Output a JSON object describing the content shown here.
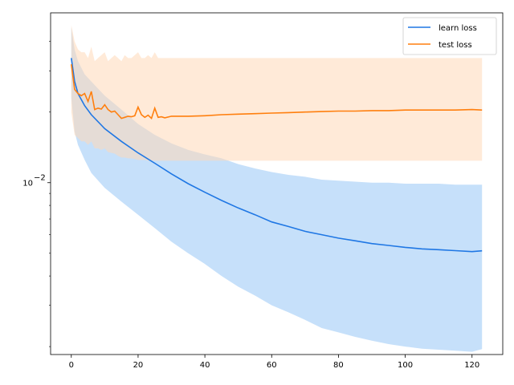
{
  "chart_data": {
    "type": "line",
    "title": "",
    "xlabel": "",
    "ylabel": "",
    "xlim": [
      -6.2,
      129.2
    ],
    "ylim": [
      0.00185,
      0.053
    ],
    "y_scale": "log",
    "grid": false,
    "legend_placement": "top-right",
    "x_ticks": [
      0,
      20,
      40,
      60,
      80,
      100,
      120
    ],
    "y_tick_label": {
      "base": "10",
      "exponent": "−2"
    },
    "y_minor_ticks": [
      0.002,
      0.003,
      0.004,
      0.005,
      0.006,
      0.007,
      0.008,
      0.009,
      0.02,
      0.03,
      0.04
    ],
    "series": [
      {
        "name": "learn loss",
        "color": "#1f77e4",
        "band_color": "#a8d0f8",
        "x": [
          0,
          1,
          2,
          4,
          6,
          10,
          15,
          20,
          25,
          30,
          35,
          40,
          45,
          50,
          55,
          60,
          65,
          70,
          75,
          80,
          85,
          90,
          95,
          100,
          105,
          110,
          115,
          120,
          123
        ],
        "y": [
          0.034,
          0.027,
          0.024,
          0.0213,
          0.0195,
          0.017,
          0.015,
          0.0134,
          0.0121,
          0.0109,
          0.0099,
          0.0091,
          0.0084,
          0.0078,
          0.0073,
          0.0068,
          0.0065,
          0.0062,
          0.006,
          0.0058,
          0.00565,
          0.0055,
          0.0054,
          0.0053,
          0.00522,
          0.00518,
          0.00513,
          0.00508,
          0.00512
        ],
        "upper": [
          0.046,
          0.037,
          0.033,
          0.029,
          0.027,
          0.0235,
          0.0205,
          0.0178,
          0.016,
          0.0147,
          0.0138,
          0.0132,
          0.0127,
          0.012,
          0.0115,
          0.0111,
          0.0108,
          0.0106,
          0.0103,
          0.0102,
          0.0101,
          0.01,
          0.01,
          0.0099,
          0.0099,
          0.0099,
          0.0098,
          0.0098,
          0.0098
        ],
        "lower": [
          0.023,
          0.0165,
          0.0145,
          0.0125,
          0.011,
          0.0095,
          0.0083,
          0.0073,
          0.0064,
          0.0056,
          0.005,
          0.0045,
          0.004,
          0.0036,
          0.0033,
          0.003,
          0.0028,
          0.0026,
          0.0024,
          0.0023,
          0.0022,
          0.00212,
          0.00205,
          0.002,
          0.00196,
          0.00194,
          0.00192,
          0.0019,
          0.00195
        ]
      },
      {
        "name": "test loss",
        "color": "#ff7f0e",
        "band_color": "#ffd9b8",
        "x": [
          0,
          1,
          2,
          3,
          4,
          5,
          6,
          7,
          8,
          9,
          10,
          11,
          12,
          13,
          14,
          15,
          16,
          17,
          18,
          19,
          20,
          21,
          22,
          23,
          24,
          25,
          26,
          27,
          28,
          30,
          35,
          40,
          45,
          50,
          55,
          60,
          65,
          70,
          75,
          80,
          85,
          90,
          95,
          100,
          105,
          110,
          115,
          120,
          123
        ],
        "y": [
          0.032,
          0.025,
          0.024,
          0.0235,
          0.024,
          0.0222,
          0.0245,
          0.0205,
          0.0208,
          0.0206,
          0.0215,
          0.0205,
          0.02,
          0.0202,
          0.0195,
          0.0188,
          0.019,
          0.0192,
          0.0191,
          0.0193,
          0.021,
          0.0195,
          0.019,
          0.0194,
          0.0188,
          0.0208,
          0.019,
          0.0191,
          0.0189,
          0.0192,
          0.0192,
          0.0193,
          0.0195,
          0.0196,
          0.0197,
          0.0198,
          0.0199,
          0.02,
          0.0201,
          0.0202,
          0.0202,
          0.0203,
          0.0203,
          0.0204,
          0.0204,
          0.0204,
          0.0204,
          0.0205,
          0.0204
        ],
        "upper": [
          0.047,
          0.04,
          0.037,
          0.036,
          0.036,
          0.034,
          0.038,
          0.033,
          0.034,
          0.035,
          0.036,
          0.033,
          0.034,
          0.035,
          0.034,
          0.033,
          0.035,
          0.034,
          0.034,
          0.035,
          0.036,
          0.034,
          0.034,
          0.035,
          0.034,
          0.036,
          0.034,
          0.034,
          0.034,
          0.034,
          0.034,
          0.034,
          0.034,
          0.034,
          0.034,
          0.034,
          0.034,
          0.034,
          0.034,
          0.034,
          0.034,
          0.034,
          0.034,
          0.034,
          0.034,
          0.034,
          0.034,
          0.034,
          0.034
        ],
        "lower": [
          0.02,
          0.016,
          0.0155,
          0.015,
          0.015,
          0.0145,
          0.015,
          0.014,
          0.014,
          0.0138,
          0.014,
          0.0135,
          0.0134,
          0.0133,
          0.013,
          0.0128,
          0.0128,
          0.0127,
          0.0127,
          0.0126,
          0.0125,
          0.0125,
          0.0125,
          0.0124,
          0.0124,
          0.0124,
          0.0124,
          0.0124,
          0.0124,
          0.0124,
          0.0124,
          0.0124,
          0.0124,
          0.0124,
          0.0124,
          0.0124,
          0.0124,
          0.0124,
          0.0124,
          0.0124,
          0.0124,
          0.0124,
          0.0124,
          0.0124,
          0.0124,
          0.0124,
          0.0124,
          0.0124,
          0.0124
        ]
      }
    ]
  }
}
